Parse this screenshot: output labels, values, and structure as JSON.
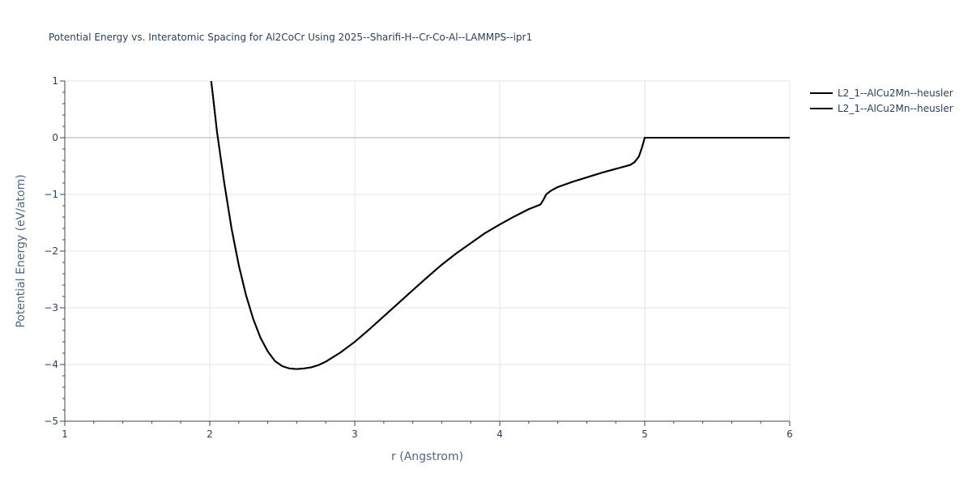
{
  "chart_data": {
    "type": "line",
    "title": "Potential Energy vs. Interatomic Spacing for Al2CoCr Using 2025--Sharifi-H--Cr-Co-Al--LAMMPS--ipr1",
    "xlabel": "r (Angstrom)",
    "ylabel": "Potential Energy (eV/atom)",
    "xlim": [
      1,
      6
    ],
    "ylim": [
      -5,
      1
    ],
    "xticks": [
      1,
      2,
      3,
      4,
      5,
      6
    ],
    "xtick_labels": [
      "1",
      "2",
      "3",
      "4",
      "5",
      "6"
    ],
    "yticks": [
      1,
      0,
      -1,
      -2,
      -3,
      -4,
      -5
    ],
    "ytick_labels": [
      "1",
      "0",
      "−1",
      "−2",
      "−3",
      "−4",
      "−5"
    ],
    "grid": true,
    "legend_position": "top-right",
    "series": [
      {
        "name": "L2_1--AlCu2Mn--heusler",
        "color": "#000000",
        "x": [
          2.01,
          2.05,
          2.1,
          2.15,
          2.2,
          2.25,
          2.3,
          2.35,
          2.4,
          2.45,
          2.5,
          2.55,
          2.6,
          2.65,
          2.7,
          2.75,
          2.8,
          2.9,
          3.0,
          3.1,
          3.2,
          3.3,
          3.4,
          3.5,
          3.6,
          3.7,
          3.8,
          3.9,
          4.0,
          4.1,
          4.2,
          4.28,
          4.3,
          4.32,
          4.35,
          4.4,
          4.5,
          4.6,
          4.7,
          4.8,
          4.9,
          4.93,
          4.96,
          4.98,
          5.0,
          5.2,
          5.5,
          6.0
        ],
        "y": [
          1.0,
          0.1,
          -0.8,
          -1.6,
          -2.25,
          -2.78,
          -3.2,
          -3.53,
          -3.77,
          -3.94,
          -4.03,
          -4.07,
          -4.08,
          -4.07,
          -4.05,
          -4.01,
          -3.95,
          -3.79,
          -3.6,
          -3.38,
          -3.15,
          -2.92,
          -2.69,
          -2.46,
          -2.24,
          -2.04,
          -1.86,
          -1.68,
          -1.53,
          -1.39,
          -1.26,
          -1.18,
          -1.1,
          -1.0,
          -0.94,
          -0.87,
          -0.78,
          -0.7,
          -0.62,
          -0.55,
          -0.48,
          -0.43,
          -0.33,
          -0.18,
          0.0,
          0.0,
          0.0,
          0.0
        ]
      },
      {
        "name": "L2_1--AlCu2Mn--heusler",
        "color": "#000000",
        "x": [
          2.01,
          2.05,
          2.1,
          2.15,
          2.2,
          2.25,
          2.3,
          2.35,
          2.4,
          2.45,
          2.5,
          2.55,
          2.6,
          2.65,
          2.7,
          2.75,
          2.8,
          2.9,
          3.0,
          3.1,
          3.2,
          3.3,
          3.4,
          3.5,
          3.6,
          3.7,
          3.8,
          3.9,
          4.0,
          4.1,
          4.2,
          4.28,
          4.3,
          4.32,
          4.35,
          4.4,
          4.5,
          4.6,
          4.7,
          4.8,
          4.9,
          4.93,
          4.96,
          4.98,
          5.0,
          5.2,
          5.5,
          6.0
        ],
        "y": [
          1.0,
          0.1,
          -0.8,
          -1.6,
          -2.25,
          -2.78,
          -3.2,
          -3.53,
          -3.77,
          -3.94,
          -4.03,
          -4.07,
          -4.08,
          -4.07,
          -4.05,
          -4.01,
          -3.95,
          -3.79,
          -3.6,
          -3.38,
          -3.15,
          -2.92,
          -2.69,
          -2.46,
          -2.24,
          -2.04,
          -1.86,
          -1.68,
          -1.53,
          -1.39,
          -1.26,
          -1.18,
          -1.1,
          -1.0,
          -0.94,
          -0.87,
          -0.78,
          -0.7,
          -0.62,
          -0.55,
          -0.48,
          -0.43,
          -0.33,
          -0.18,
          0.0,
          0.0,
          0.0,
          0.0
        ]
      }
    ]
  }
}
